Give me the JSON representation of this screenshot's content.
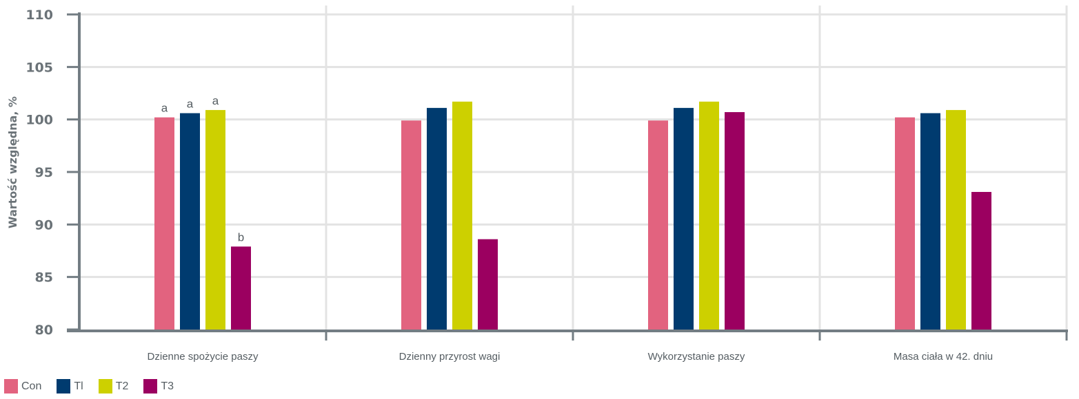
{
  "chart_data": {
    "type": "bar",
    "title": "",
    "ylabel": "Wartość względna, %",
    "xlabel": "",
    "ylim": [
      80,
      110
    ],
    "yticks": [
      80,
      85,
      90,
      95,
      100,
      105,
      110
    ],
    "grid": true,
    "legend_position": "bottom-left",
    "categories": [
      "Dzienne spożycie paszy",
      "Dzienny przyrost wagi",
      "Wykorzystanie  paszy",
      "Masa ciała w 42. dniu"
    ],
    "series": [
      {
        "name": "Con",
        "color": "#e2637f",
        "values": [
          100.2,
          99.9,
          99.9,
          100.2
        ],
        "labels": [
          "a",
          "",
          "",
          ""
        ]
      },
      {
        "name": "Tl",
        "color": "#003b6f",
        "values": [
          100.6,
          101.1,
          101.1,
          100.6
        ],
        "labels": [
          "a",
          "",
          "",
          ""
        ]
      },
      {
        "name": "T2",
        "color": "#cdd000",
        "values": [
          100.9,
          101.7,
          101.7,
          100.9
        ],
        "labels": [
          "a",
          "",
          "",
          ""
        ]
      },
      {
        "name": "T3",
        "color": "#9b0060",
        "values": [
          87.9,
          88.6,
          100.7,
          93.1
        ],
        "labels": [
          "b",
          "",
          "",
          ""
        ]
      }
    ]
  }
}
